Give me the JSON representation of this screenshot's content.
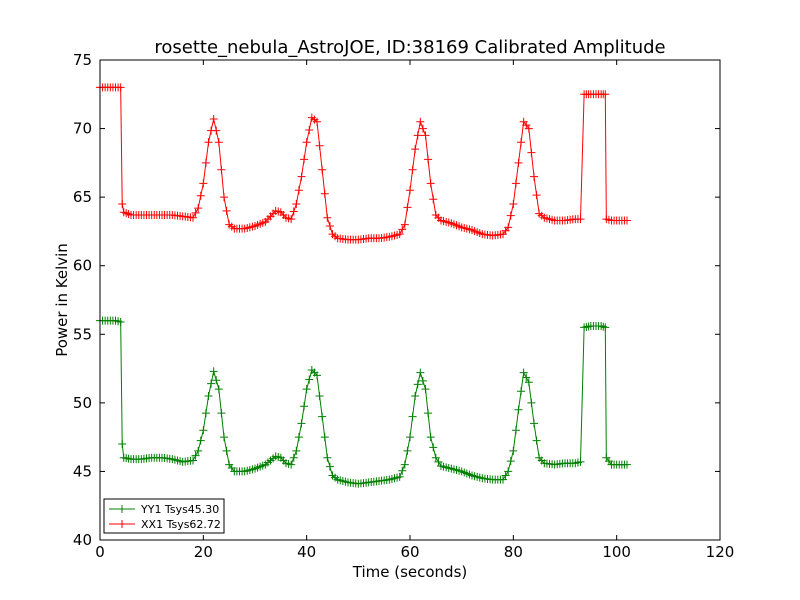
{
  "chart_data": {
    "type": "line",
    "title": "rosette_nebula_AstroJOE, ID:38169 Calibrated Amplitude",
    "xlabel": "Time (seconds)",
    "ylabel": "Power in Kelvin",
    "xlim": [
      0,
      120
    ],
    "ylim": [
      40,
      75
    ],
    "xticks": [
      "0",
      "20",
      "40",
      "60",
      "80",
      "100",
      "120"
    ],
    "yticks": [
      "40",
      "45",
      "50",
      "55",
      "60",
      "65",
      "70",
      "75"
    ],
    "grid": false,
    "legend_position": "lower-left",
    "marker": "plus",
    "series": [
      {
        "name": "YY1 Tsys45.30",
        "color": "#008000",
        "points": [
          [
            0,
            56.0
          ],
          [
            1,
            56.0
          ],
          [
            2,
            56.0
          ],
          [
            3,
            56.0
          ],
          [
            4,
            55.9
          ],
          [
            4.3,
            47.0
          ],
          [
            4.6,
            46.0
          ],
          [
            6,
            45.9
          ],
          [
            8,
            45.9
          ],
          [
            10,
            46.0
          ],
          [
            12,
            46.0
          ],
          [
            14,
            45.9
          ],
          [
            16,
            45.7
          ],
          [
            18,
            45.8
          ],
          [
            19,
            46.5
          ],
          [
            20,
            48.0
          ],
          [
            21,
            50.5
          ],
          [
            22,
            52.3
          ],
          [
            23,
            51.0
          ],
          [
            24,
            47.5
          ],
          [
            25,
            45.5
          ],
          [
            26,
            45.0
          ],
          [
            28,
            45.0
          ],
          [
            30,
            45.2
          ],
          [
            32,
            45.5
          ],
          [
            34,
            46.1
          ],
          [
            35,
            46.0
          ],
          [
            36,
            45.6
          ],
          [
            37,
            45.5
          ],
          [
            38,
            46.5
          ],
          [
            39,
            48.5
          ],
          [
            40,
            51.0
          ],
          [
            41,
            52.4
          ],
          [
            42,
            52.0
          ],
          [
            43,
            49.0
          ],
          [
            44,
            46.0
          ],
          [
            45,
            44.7
          ],
          [
            46,
            44.4
          ],
          [
            48,
            44.2
          ],
          [
            50,
            44.1
          ],
          [
            52,
            44.2
          ],
          [
            54,
            44.3
          ],
          [
            56,
            44.4
          ],
          [
            58,
            44.6
          ],
          [
            59,
            45.5
          ],
          [
            60,
            47.5
          ],
          [
            61,
            50.5
          ],
          [
            62,
            52.2
          ],
          [
            63,
            51.0
          ],
          [
            64,
            47.5
          ],
          [
            65,
            46.0
          ],
          [
            66,
            45.4
          ],
          [
            68,
            45.2
          ],
          [
            70,
            45.0
          ],
          [
            72,
            44.7
          ],
          [
            74,
            44.5
          ],
          [
            76,
            44.4
          ],
          [
            78,
            44.4
          ],
          [
            79,
            45.0
          ],
          [
            80,
            46.5
          ],
          [
            81,
            49.5
          ],
          [
            82,
            52.2
          ],
          [
            83,
            51.5
          ],
          [
            84,
            48.5
          ],
          [
            85,
            46.0
          ],
          [
            86,
            45.6
          ],
          [
            88,
            45.5
          ],
          [
            90,
            45.6
          ],
          [
            92,
            45.6
          ],
          [
            93,
            45.7
          ],
          [
            93.7,
            55.5
          ],
          [
            95,
            55.6
          ],
          [
            97,
            55.6
          ],
          [
            97.8,
            55.5
          ],
          [
            98,
            46.0
          ],
          [
            99,
            45.5
          ],
          [
            101,
            45.5
          ],
          [
            102,
            45.5
          ]
        ]
      },
      {
        "name": "XX1 Tsys62.72",
        "color": "#ff0000",
        "points": [
          [
            0,
            73.0
          ],
          [
            1,
            73.0
          ],
          [
            2,
            73.0
          ],
          [
            3,
            73.0
          ],
          [
            4,
            73.0
          ],
          [
            4.3,
            64.5
          ],
          [
            4.6,
            63.9
          ],
          [
            6,
            63.7
          ],
          [
            8,
            63.7
          ],
          [
            10,
            63.7
          ],
          [
            12,
            63.7
          ],
          [
            14,
            63.7
          ],
          [
            16,
            63.6
          ],
          [
            18,
            63.5
          ],
          [
            19,
            64.2
          ],
          [
            20,
            66.0
          ],
          [
            21,
            69.0
          ],
          [
            22,
            70.7
          ],
          [
            23,
            69.0
          ],
          [
            24,
            65.0
          ],
          [
            25,
            63.0
          ],
          [
            26,
            62.7
          ],
          [
            28,
            62.7
          ],
          [
            30,
            62.9
          ],
          [
            32,
            63.2
          ],
          [
            34,
            64.0
          ],
          [
            35,
            63.9
          ],
          [
            36,
            63.5
          ],
          [
            37,
            63.4
          ],
          [
            38,
            64.5
          ],
          [
            39,
            66.5
          ],
          [
            40,
            69.0
          ],
          [
            41,
            70.8
          ],
          [
            42,
            70.5
          ],
          [
            43,
            67.0
          ],
          [
            44,
            63.5
          ],
          [
            45,
            62.3
          ],
          [
            46,
            62.0
          ],
          [
            48,
            61.9
          ],
          [
            50,
            61.9
          ],
          [
            52,
            62.0
          ],
          [
            54,
            62.0
          ],
          [
            56,
            62.1
          ],
          [
            58,
            62.3
          ],
          [
            59,
            63.0
          ],
          [
            60,
            65.5
          ],
          [
            61,
            68.5
          ],
          [
            62,
            70.5
          ],
          [
            63,
            69.5
          ],
          [
            64,
            66.0
          ],
          [
            65,
            63.7
          ],
          [
            66,
            63.3
          ],
          [
            68,
            63.1
          ],
          [
            70,
            62.8
          ],
          [
            72,
            62.6
          ],
          [
            74,
            62.3
          ],
          [
            76,
            62.2
          ],
          [
            78,
            62.3
          ],
          [
            79,
            62.8
          ],
          [
            80,
            64.5
          ],
          [
            81,
            67.5
          ],
          [
            82,
            70.5
          ],
          [
            83,
            70.0
          ],
          [
            84,
            66.5
          ],
          [
            85,
            63.8
          ],
          [
            86,
            63.5
          ],
          [
            88,
            63.3
          ],
          [
            90,
            63.3
          ],
          [
            92,
            63.4
          ],
          [
            93,
            63.4
          ],
          [
            93.7,
            72.5
          ],
          [
            95,
            72.5
          ],
          [
            97,
            72.5
          ],
          [
            97.8,
            72.5
          ],
          [
            98,
            63.4
          ],
          [
            99,
            63.3
          ],
          [
            101,
            63.3
          ],
          [
            102,
            63.3
          ]
        ]
      }
    ]
  }
}
